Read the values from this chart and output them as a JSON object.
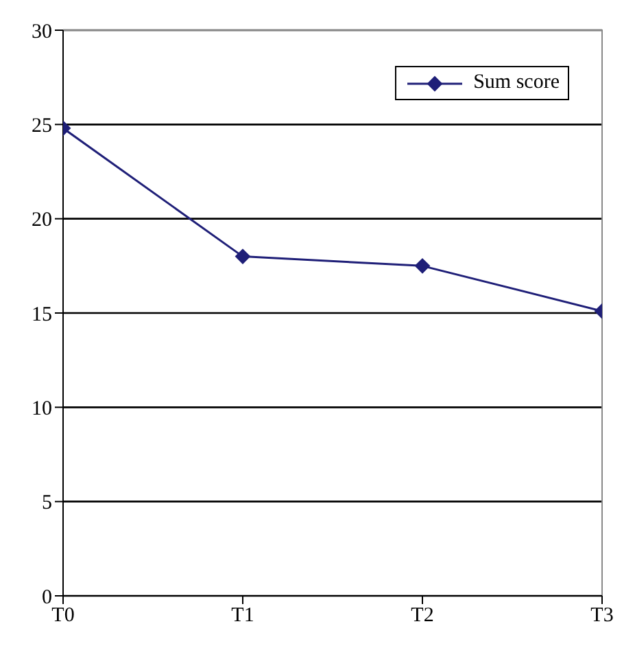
{
  "chart_data": {
    "type": "line",
    "categories": [
      "T0",
      "T1",
      "T2",
      "T3"
    ],
    "series": [
      {
        "name": "Sum score",
        "color": "#1f1f78",
        "values": [
          24.8,
          18.0,
          17.5,
          15.1
        ]
      }
    ],
    "ylim": [
      0,
      30
    ],
    "yticks": [
      0,
      5,
      10,
      15,
      20,
      25,
      30
    ],
    "grid": "y",
    "legend": "top right",
    "marker": "diamond"
  }
}
